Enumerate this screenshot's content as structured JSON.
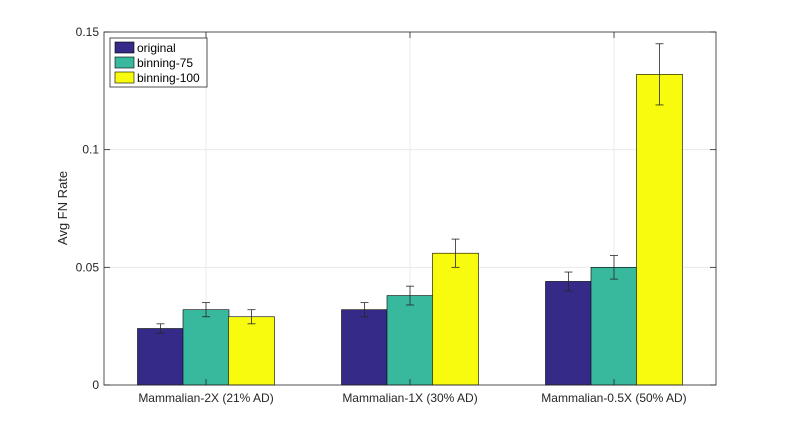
{
  "chart_data": {
    "type": "bar",
    "title": "",
    "xlabel": "",
    "ylabel": "Avg FN Rate",
    "categories": [
      "Mammalian-2X (21% AD)",
      "Mammalian-1X (30% AD)",
      "Mammalian-0.5X (50% AD)"
    ],
    "series": [
      {
        "name": "original",
        "color": "#352a87",
        "values": [
          0.024,
          0.032,
          0.044
        ],
        "error_low": [
          0.022,
          0.029,
          0.04
        ],
        "error_high": [
          0.026,
          0.035,
          0.048
        ]
      },
      {
        "name": "binning-75",
        "color": "#38b99e",
        "values": [
          0.032,
          0.038,
          0.05
        ],
        "error_low": [
          0.029,
          0.034,
          0.045
        ],
        "error_high": [
          0.035,
          0.042,
          0.055
        ]
      },
      {
        "name": "binning-100",
        "color": "#f9fb0e",
        "values": [
          0.029,
          0.056,
          0.132
        ],
        "error_low": [
          0.026,
          0.05,
          0.119
        ],
        "error_high": [
          0.032,
          0.062,
          0.145
        ]
      }
    ],
    "ylim": [
      0,
      0.15
    ],
    "yticks": [
      {
        "value": 0,
        "label": "0"
      },
      {
        "value": 0.05,
        "label": "0.05"
      },
      {
        "value": 0.1,
        "label": "0.1"
      },
      {
        "value": 0.15,
        "label": "0.15"
      }
    ],
    "grid": true,
    "legend_position": "top-left"
  }
}
